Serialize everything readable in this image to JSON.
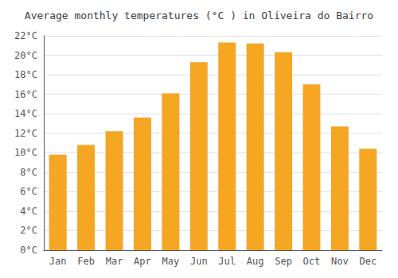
{
  "chart_data": {
    "type": "bar",
    "title": "Average monthly temperatures (°C ) in Oliveira do Bairro",
    "categories": [
      "Jan",
      "Feb",
      "Mar",
      "Apr",
      "May",
      "Jun",
      "Jul",
      "Aug",
      "Sep",
      "Oct",
      "Nov",
      "Dec"
    ],
    "values": [
      9.8,
      10.8,
      12.2,
      13.6,
      16.1,
      19.3,
      21.3,
      21.2,
      20.3,
      17.0,
      12.7,
      10.4
    ],
    "color": "#F5A623",
    "ylim": [
      0,
      22
    ],
    "yticks": [
      {
        "value": 0,
        "label": "0°C"
      },
      {
        "value": 2,
        "label": "2°C"
      },
      {
        "value": 4,
        "label": "4°C"
      },
      {
        "value": 6,
        "label": "6°C"
      },
      {
        "value": 8,
        "label": "8°C"
      },
      {
        "value": 10,
        "label": "10°C"
      },
      {
        "value": 12,
        "label": "12°C"
      },
      {
        "value": 14,
        "label": "14°C"
      },
      {
        "value": 16,
        "label": "16°C"
      },
      {
        "value": 18,
        "label": "18°C"
      },
      {
        "value": 20,
        "label": "20°C"
      },
      {
        "value": 22,
        "label": "22°C"
      }
    ],
    "grid": true
  }
}
